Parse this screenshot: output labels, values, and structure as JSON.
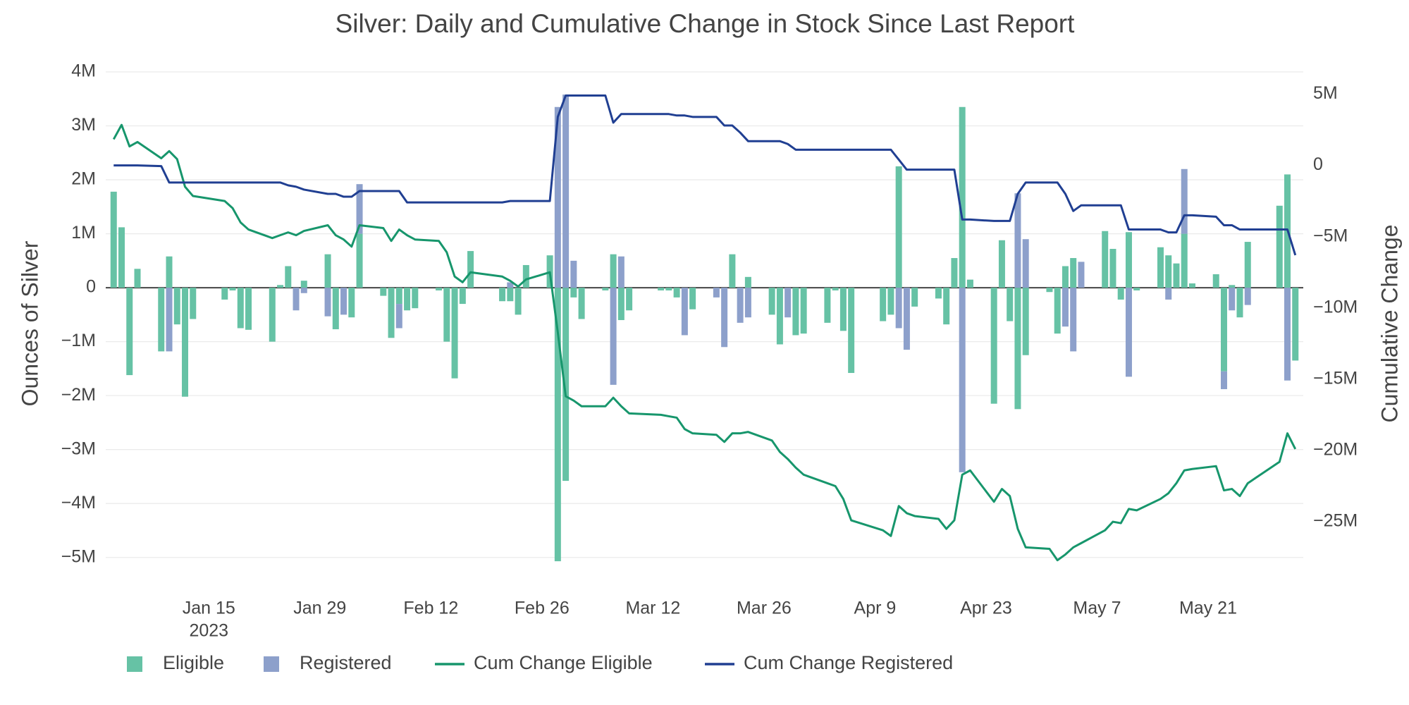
{
  "chart_data": {
    "type": "bar",
    "title": "Silver: Daily and Cumulative Change in Stock Since Last Report",
    "y_label": "Ounces of Silver",
    "y2_label": "Cumulative Change",
    "x_year": "2023",
    "barmode": "relative",
    "grid": true,
    "legend": "bottom",
    "x": [
      "2023-01-03",
      "2023-01-04",
      "2023-01-05",
      "2023-01-06",
      "2023-01-09",
      "2023-01-10",
      "2023-01-11",
      "2023-01-12",
      "2023-01-13",
      "2023-01-17",
      "2023-01-18",
      "2023-01-19",
      "2023-01-20",
      "2023-01-23",
      "2023-01-24",
      "2023-01-25",
      "2023-01-26",
      "2023-01-27",
      "2023-01-30",
      "2023-01-31",
      "2023-02-01",
      "2023-02-02",
      "2023-02-03",
      "2023-02-06",
      "2023-02-07",
      "2023-02-08",
      "2023-02-09",
      "2023-02-10",
      "2023-02-13",
      "2023-02-14",
      "2023-02-15",
      "2023-02-16",
      "2023-02-17",
      "2023-02-21",
      "2023-02-22",
      "2023-02-23",
      "2023-02-24",
      "2023-02-27",
      "2023-02-28",
      "2023-03-01",
      "2023-03-02",
      "2023-03-03",
      "2023-03-06",
      "2023-03-07",
      "2023-03-08",
      "2023-03-09",
      "2023-03-13",
      "2023-03-14",
      "2023-03-15",
      "2023-03-16",
      "2023-03-17",
      "2023-03-20",
      "2023-03-21",
      "2023-03-22",
      "2023-03-23",
      "2023-03-24",
      "2023-03-27",
      "2023-03-28",
      "2023-03-29",
      "2023-03-30",
      "2023-03-31",
      "2023-04-03",
      "2023-04-04",
      "2023-04-05",
      "2023-04-06",
      "2023-04-10",
      "2023-04-11",
      "2023-04-12",
      "2023-04-13",
      "2023-04-14",
      "2023-04-17",
      "2023-04-18",
      "2023-04-19",
      "2023-04-20",
      "2023-04-21",
      "2023-04-24",
      "2023-04-25",
      "2023-04-26",
      "2023-04-27",
      "2023-04-28",
      "2023-05-01",
      "2023-05-02",
      "2023-05-03",
      "2023-05-04",
      "2023-05-05",
      "2023-05-08",
      "2023-05-09",
      "2023-05-10",
      "2023-05-11",
      "2023-05-12",
      "2023-05-15",
      "2023-05-16",
      "2023-05-17",
      "2023-05-18",
      "2023-05-19",
      "2023-05-22",
      "2023-05-23",
      "2023-05-24",
      "2023-05-25",
      "2023-05-26",
      "2023-05-30",
      "2023-05-31",
      "2023-06-01"
    ],
    "xlim": [
      "2023-01-02",
      "2023-06-02"
    ],
    "xticks": [
      {
        "value": "2023-01-15",
        "label": "Jan 15"
      },
      {
        "value": "2023-01-29",
        "label": "Jan 29"
      },
      {
        "value": "2023-02-12",
        "label": "Feb 12"
      },
      {
        "value": "2023-02-26",
        "label": "Feb 26"
      },
      {
        "value": "2023-03-12",
        "label": "Mar 12"
      },
      {
        "value": "2023-03-26",
        "label": "Mar 26"
      },
      {
        "value": "2023-04-09",
        "label": "Apr 9"
      },
      {
        "value": "2023-04-23",
        "label": "Apr 23"
      },
      {
        "value": "2023-05-07",
        "label": "May 7"
      },
      {
        "value": "2023-05-21",
        "label": "May 21"
      }
    ],
    "ylim": [
      -5500000.0,
      4170000.0
    ],
    "yticks": [
      {
        "value": 4000000.0,
        "label": "4M"
      },
      {
        "value": 3000000.0,
        "label": "3M"
      },
      {
        "value": 2000000.0,
        "label": "2M"
      },
      {
        "value": 1000000.0,
        "label": "1M"
      },
      0,
      {
        "value": -1000000.0,
        "label": "−1M"
      },
      {
        "value": -2000000.0,
        "label": "−2M"
      },
      {
        "value": -3000000.0,
        "label": "−3M"
      },
      {
        "value": -4000000.0,
        "label": "−4M"
      },
      {
        "value": -5000000.0,
        "label": "−5M"
      }
    ],
    "y2lim": [
      -29400000.0,
      7200000.0
    ],
    "y2ticks": [
      {
        "value": 5000000.0,
        "label": "5M"
      },
      0,
      {
        "value": -5000000.0,
        "label": "−5M"
      },
      {
        "value": -10000000.0,
        "label": "−10M"
      },
      {
        "value": -15000000.0,
        "label": "−15M"
      },
      {
        "value": -20000000.0,
        "label": "−20M"
      },
      {
        "value": -25000000.0,
        "label": "−25M"
      }
    ],
    "series": [
      {
        "name": "Eligible",
        "type": "bar",
        "color": "#66c2a5",
        "values": [
          1780000.0,
          1120000.0,
          -1620000.0,
          350000.0,
          -1180000.0,
          580000.0,
          -680000.0,
          -2020000.0,
          -580000.0,
          -220000.0,
          -50000.0,
          -750000.0,
          -780000.0,
          -1000000.0,
          50000.0,
          400000.0,
          null,
          130000.0,
          620000.0,
          -770000.0,
          null,
          -550000.0,
          1000000.0,
          -150000.0,
          -930000.0,
          -300000.0,
          -420000.0,
          -380000.0,
          -50000.0,
          -1000000.0,
          -1680000.0,
          -300000.0,
          680000.0,
          -250000.0,
          -250000.0,
          -500000.0,
          420000.0,
          600000.0,
          -5070000.0,
          -3580000.0,
          -180000.0,
          -580000.0,
          -50000.0,
          620000.0,
          -600000.0,
          -420000.0,
          -50000.0,
          -50000.0,
          -180000.0,
          null,
          -400000.0,
          null,
          null,
          620000.0,
          null,
          200000.0,
          -500000.0,
          -1050000.0,
          null,
          -880000.0,
          -850000.0,
          -650000.0,
          -50000.0,
          -800000.0,
          -1580000.0,
          -620000.0,
          -500000.0,
          2250000.0,
          null,
          -350000.0,
          -200000.0,
          -680000.0,
          550000.0,
          3350000.0,
          150000.0,
          -2150000.0,
          880000.0,
          -620000.0,
          -2250000.0,
          -1250000.0,
          -80000.0,
          -850000.0,
          400000.0,
          550000.0,
          null,
          1050000.0,
          720000.0,
          -220000.0,
          1030000.0,
          -50000.0,
          750000.0,
          600000.0,
          450000.0,
          1000000.0,
          80000.0,
          250000.0,
          -1550000.0,
          50000.0,
          -550000.0,
          850000.0,
          1520000.0,
          2100000.0,
          -1350000.0
        ]
      },
      {
        "name": "Registered",
        "type": "bar",
        "color": "#8da0cb",
        "values": [
          null,
          null,
          null,
          null,
          null,
          -1180000.0,
          null,
          null,
          null,
          null,
          null,
          null,
          null,
          null,
          null,
          null,
          -420000.0,
          -100000.0,
          -530000.0,
          null,
          -500000.0,
          null,
          920000.0,
          null,
          null,
          -450000.0,
          null,
          null,
          null,
          null,
          null,
          null,
          null,
          null,
          100000.0,
          null,
          null,
          null,
          3350000.0,
          3580000.0,
          500000.0,
          null,
          null,
          -1800000.0,
          580000.0,
          null,
          null,
          null,
          null,
          -880000.0,
          null,
          -180000.0,
          -1100000.0,
          null,
          -650000.0,
          -550000.0,
          null,
          null,
          -550000.0,
          null,
          null,
          null,
          null,
          null,
          null,
          null,
          null,
          -750000.0,
          -1150000.0,
          null,
          null,
          null,
          null,
          -3420000.0,
          null,
          null,
          null,
          null,
          1750000.0,
          900000.0,
          null,
          null,
          -720000.0,
          -1180000.0,
          480000.0,
          null,
          null,
          null,
          -1650000.0,
          null,
          null,
          -220000.0,
          null,
          1200000.0,
          null,
          null,
          -330000.0,
          -420000.0,
          null,
          -320000.0,
          null,
          -1720000.0,
          null
        ]
      },
      {
        "name": "Cum Change Eligible",
        "type": "line",
        "axis": "y2",
        "color": "#17966c",
        "values": [
          1830000.0,
          2840000.0,
          1330000.0,
          1640000.0,
          500000.0,
          1000000.0,
          440000.0,
          -1500000.0,
          -2150000.0,
          -2500000.0,
          -3000000.0,
          -4000000.0,
          -4500000.0,
          -5100000.0,
          -4900000.0,
          -4700000.0,
          -4900000.0,
          -4600000.0,
          -4200000.0,
          -4900000.0,
          -5200000.0,
          -5700000.0,
          -4200000.0,
          -4400000.0,
          -5300000.0,
          -4500000.0,
          -4900000.0,
          -5200000.0,
          -5300000.0,
          -6100000.0,
          -7800000.0,
          -8200000.0,
          -7500000.0,
          -7800000.0,
          -8100000.0,
          -8500000.0,
          -8000000.0,
          -7500000.0,
          -11700000.0,
          -16200000.0,
          -16500000.0,
          -16900000.0,
          -16900000.0,
          -16300000.0,
          -16900000.0,
          -17400000.0,
          -17500000.0,
          -17600000.0,
          -17700000.0,
          -18500000.0,
          -18800000.0,
          -18900000.0,
          -19400000.0,
          -18800000.0,
          -18800000.0,
          -18700000.0,
          -19300000.0,
          -20100000.0,
          -20600000.0,
          -21200000.0,
          -21700000.0,
          -22300000.0,
          -22500000.0,
          -23400000.0,
          -24900000.0,
          -25600000.0,
          -26000000.0,
          -23900000.0,
          -24400000.0,
          -24600000.0,
          -24800000.0,
          -25500000.0,
          -24900000.0,
          -21700000.0,
          -21400000.0,
          -23600000.0,
          -22700000.0,
          -23200000.0,
          -25500000.0,
          -26800000.0,
          -26900000.0,
          -27700000.0,
          -27300000.0,
          -26800000.0,
          -26500000.0,
          -25600000.0,
          -25000000.0,
          -25100000.0,
          -24100000.0,
          -24200000.0,
          -23400000.0,
          -23000000.0,
          -22300000.0,
          -21400000.0,
          -21300000.0,
          -21100000.0,
          -22800000.0,
          -22700000.0,
          -23200000.0,
          -22300000.0,
          -20800000.0,
          -18800000.0,
          -19900000.0
        ]
      },
      {
        "name": "Cum Change Registered",
        "type": "line",
        "axis": "y2",
        "color": "#203f92",
        "values": [
          0,
          0,
          0,
          0,
          -50000.0,
          -1200000.0,
          -1200000.0,
          -1200000.0,
          -1200000.0,
          -1200000.0,
          -1200000.0,
          -1200000.0,
          -1200000.0,
          -1200000.0,
          -1200000.0,
          -1400000.0,
          -1500000.0,
          -1700000.0,
          -2000000.0,
          -2000000.0,
          -2200000.0,
          -2200000.0,
          -1800000.0,
          -1800000.0,
          -1800000.0,
          -1800000.0,
          -2600000.0,
          -2600000.0,
          -2600000.0,
          -2600000.0,
          -2600000.0,
          -2600000.0,
          -2600000.0,
          -2600000.0,
          -2500000.0,
          -2500000.0,
          -2500000.0,
          -2500000.0,
          3400000.0,
          4900000.0,
          4900000.0,
          4900000.0,
          4900000.0,
          3000000.0,
          3600000.0,
          3600000.0,
          3600000.0,
          3600000.0,
          3500000.0,
          3500000.0,
          3400000.0,
          3400000.0,
          2800000.0,
          2800000.0,
          2300000.0,
          1700000.0,
          1700000.0,
          1700000.0,
          1500000.0,
          1100000.0,
          1100000.0,
          1100000.0,
          1100000.0,
          1100000.0,
          1100000.0,
          1100000.0,
          1100000.0,
          400000.0,
          -300000.0,
          -300000.0,
          -300000.0,
          -300000.0,
          -300000.0,
          -3800000.0,
          -3800000.0,
          -3900000.0,
          -3900000.0,
          -3900000.0,
          -2000000.0,
          -1200000.0,
          -1200000.0,
          -1200000.0,
          -2000000.0,
          -3200000.0,
          -2800000.0,
          -2800000.0,
          -2800000.0,
          -2800000.0,
          -4500000.0,
          -4500000.0,
          -4500000.0,
          -4700000.0,
          -4700000.0,
          -3500000.0,
          -3500000.0,
          -3600000.0,
          -4200000.0,
          -4200000.0,
          -4500000.0,
          -4500000.0,
          -4500000.0,
          -4500000.0,
          -6300000.0
        ]
      }
    ]
  }
}
